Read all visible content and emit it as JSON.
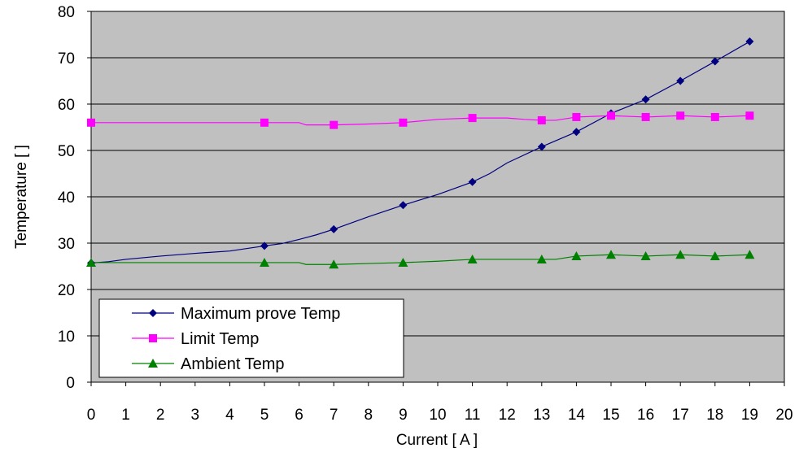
{
  "chart_data": {
    "type": "line",
    "title": "",
    "xlabel": "Current [ A ]",
    "ylabel": "Temperature [ ]",
    "xlim": [
      0,
      20
    ],
    "ylim": [
      0,
      80
    ],
    "x_ticks": [
      "0",
      "1",
      "2",
      "3",
      "4",
      "5",
      "6",
      "7",
      "8",
      "9",
      "10",
      "11",
      "12",
      "13",
      "14",
      "15",
      "16",
      "17",
      "18",
      "19",
      "20"
    ],
    "y_ticks": [
      "0",
      "10",
      "20",
      "30",
      "40",
      "50",
      "60",
      "70",
      "80"
    ],
    "grid": "horizontal",
    "plot_background": "#c0c0c0",
    "legend_position": "bottom-left",
    "series": [
      {
        "name": "Maximum prove Temp",
        "color": "#000080",
        "marker": "diamond",
        "points": [
          [
            0,
            25.7
          ],
          [
            5,
            29.4
          ],
          [
            7,
            33
          ],
          [
            9,
            38.2
          ],
          [
            11,
            43.2
          ],
          [
            13,
            50.8
          ],
          [
            14,
            54
          ],
          [
            15,
            58
          ],
          [
            16,
            61
          ],
          [
            17,
            65
          ],
          [
            18,
            69.2
          ],
          [
            19,
            73.5
          ]
        ],
        "line": [
          [
            0,
            25.7
          ],
          [
            0.5,
            26
          ],
          [
            1,
            26.5
          ],
          [
            2,
            27.2
          ],
          [
            3,
            27.8
          ],
          [
            4,
            28.3
          ],
          [
            5,
            29.4
          ],
          [
            5.5,
            29.9
          ],
          [
            6,
            30.8
          ],
          [
            6.5,
            31.8
          ],
          [
            7,
            33
          ],
          [
            8,
            35.7
          ],
          [
            9,
            38.2
          ],
          [
            10,
            40.5
          ],
          [
            11,
            43.2
          ],
          [
            11.5,
            45
          ],
          [
            12,
            47.3
          ],
          [
            13,
            50.8
          ],
          [
            14,
            54
          ],
          [
            15,
            58
          ],
          [
            16,
            61
          ],
          [
            17,
            65
          ],
          [
            18,
            69.2
          ],
          [
            19,
            73.5
          ]
        ]
      },
      {
        "name": "Limit Temp",
        "color": "#ff00ff",
        "marker": "square",
        "points": [
          [
            0,
            56
          ],
          [
            5,
            56
          ],
          [
            7,
            55.5
          ],
          [
            9,
            56
          ],
          [
            11,
            57
          ],
          [
            13,
            56.5
          ],
          [
            14,
            57.2
          ],
          [
            15,
            57.5
          ],
          [
            16,
            57.2
          ],
          [
            17,
            57.5
          ],
          [
            18,
            57.2
          ],
          [
            19,
            57.5
          ]
        ],
        "line": [
          [
            0,
            56
          ],
          [
            5,
            56
          ],
          [
            6,
            56
          ],
          [
            6.2,
            55.5
          ],
          [
            7,
            55.5
          ],
          [
            8,
            55.7
          ],
          [
            9,
            56
          ],
          [
            10,
            56.7
          ],
          [
            11,
            57
          ],
          [
            12,
            57
          ],
          [
            12.5,
            56.7
          ],
          [
            13,
            56.5
          ],
          [
            13.4,
            56.5
          ],
          [
            14,
            57.2
          ],
          [
            15,
            57.5
          ],
          [
            16,
            57.2
          ],
          [
            17,
            57.5
          ],
          [
            18,
            57.2
          ],
          [
            19,
            57.5
          ]
        ]
      },
      {
        "name": "Ambient Temp",
        "color": "#008000",
        "marker": "triangle",
        "points": [
          [
            0,
            25.8
          ],
          [
            5,
            25.8
          ],
          [
            7,
            25.4
          ],
          [
            9,
            25.8
          ],
          [
            11,
            26.5
          ],
          [
            13,
            26.5
          ],
          [
            14,
            27.2
          ],
          [
            15,
            27.5
          ],
          [
            16,
            27.2
          ],
          [
            17,
            27.5
          ],
          [
            18,
            27.2
          ],
          [
            19,
            27.5
          ]
        ],
        "line": [
          [
            0,
            25.8
          ],
          [
            5,
            25.8
          ],
          [
            6,
            25.8
          ],
          [
            6.2,
            25.4
          ],
          [
            7,
            25.4
          ],
          [
            8,
            25.6
          ],
          [
            9,
            25.8
          ],
          [
            10,
            26.1
          ],
          [
            11,
            26.5
          ],
          [
            12,
            26.5
          ],
          [
            13,
            26.5
          ],
          [
            13.4,
            26.5
          ],
          [
            14,
            27.2
          ],
          [
            15,
            27.5
          ],
          [
            16,
            27.2
          ],
          [
            17,
            27.5
          ],
          [
            18,
            27.2
          ],
          [
            19,
            27.5
          ]
        ]
      }
    ]
  }
}
